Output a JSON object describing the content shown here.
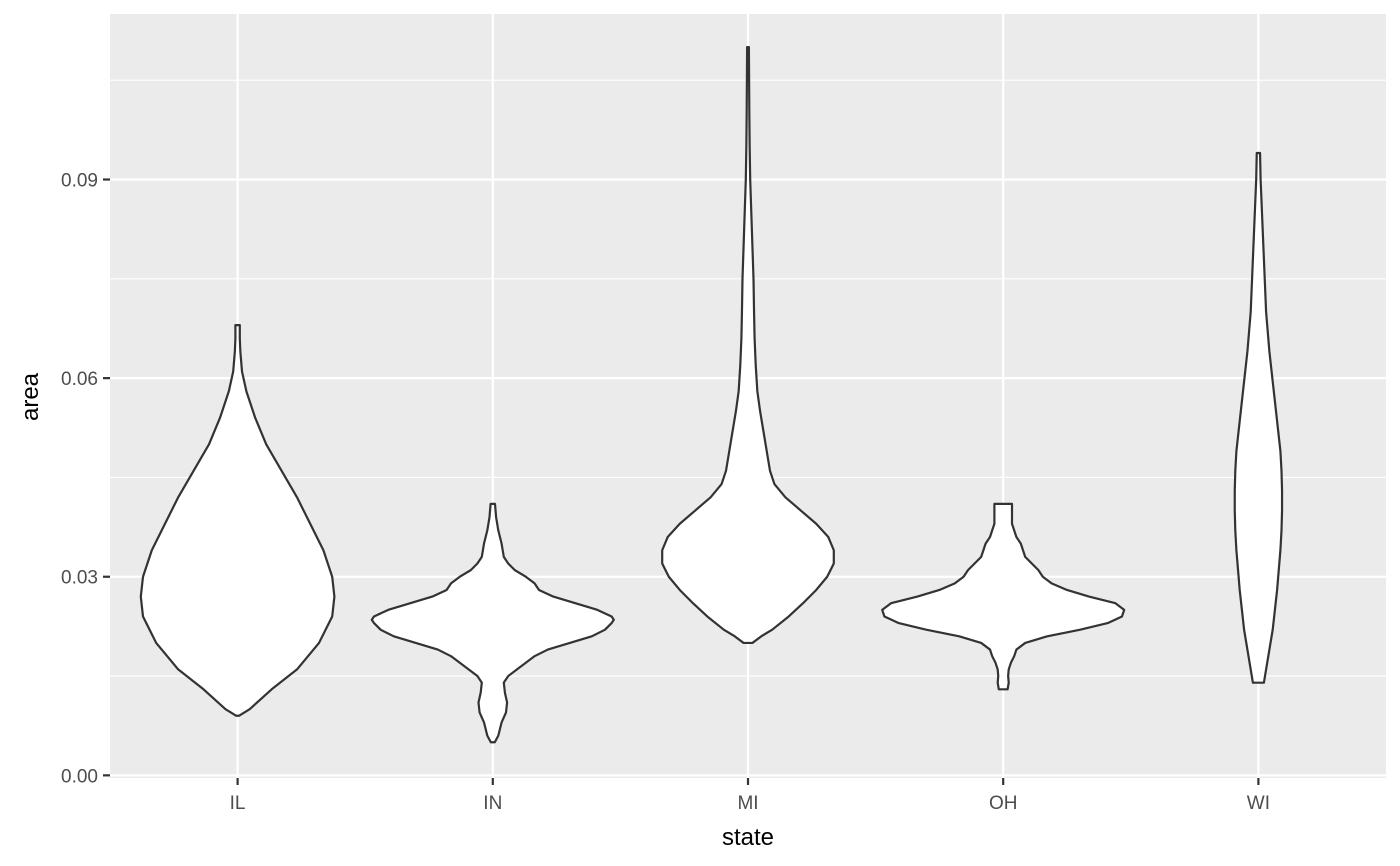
{
  "chart_data": {
    "type": "violin",
    "xlabel": "state",
    "ylabel": "area",
    "categories": [
      "IL",
      "IN",
      "MI",
      "OH",
      "WI"
    ],
    "ylim": [
      -0.0004,
      0.115
    ],
    "yticks": [
      0.0,
      0.03,
      0.06,
      0.09
    ],
    "ytick_labels": [
      "0.00",
      "0.03",
      "0.06",
      "0.09"
    ],
    "minor_yticks": [
      0.015,
      0.045,
      0.075,
      0.105
    ],
    "grid": true,
    "colors": {
      "panel": "#ebebeb",
      "grid": "#ffffff",
      "fill": "#ffffff",
      "outline": "#333333",
      "axis_text": "#4d4d4d"
    },
    "violins": [
      {
        "category": "IL",
        "min": 0.009,
        "max": 0.068,
        "profile": [
          [
            0.009,
            0.012
          ],
          [
            0.01,
            0.11
          ],
          [
            0.013,
            0.31
          ],
          [
            0.016,
            0.54
          ],
          [
            0.02,
            0.74
          ],
          [
            0.024,
            0.86
          ],
          [
            0.027,
            0.88
          ],
          [
            0.03,
            0.86
          ],
          [
            0.034,
            0.78
          ],
          [
            0.038,
            0.66
          ],
          [
            0.042,
            0.54
          ],
          [
            0.046,
            0.4
          ],
          [
            0.05,
            0.26
          ],
          [
            0.054,
            0.16
          ],
          [
            0.058,
            0.08
          ],
          [
            0.061,
            0.04
          ],
          [
            0.064,
            0.025
          ],
          [
            0.066,
            0.02
          ],
          [
            0.068,
            0.02
          ]
        ]
      },
      {
        "category": "IN",
        "min": 0.005,
        "max": 0.041,
        "profile": [
          [
            0.005,
            0.018
          ],
          [
            0.006,
            0.05
          ],
          [
            0.008,
            0.08
          ],
          [
            0.0095,
            0.12
          ],
          [
            0.011,
            0.13
          ],
          [
            0.0125,
            0.11
          ],
          [
            0.014,
            0.1
          ],
          [
            0.015,
            0.14
          ],
          [
            0.016,
            0.22
          ],
          [
            0.017,
            0.3
          ],
          [
            0.018,
            0.38
          ],
          [
            0.019,
            0.5
          ],
          [
            0.02,
            0.7
          ],
          [
            0.021,
            0.9
          ],
          [
            0.022,
            1.02
          ],
          [
            0.023,
            1.08
          ],
          [
            0.0235,
            1.1
          ],
          [
            0.024,
            1.08
          ],
          [
            0.025,
            0.95
          ],
          [
            0.026,
            0.75
          ],
          [
            0.027,
            0.55
          ],
          [
            0.028,
            0.42
          ],
          [
            0.029,
            0.38
          ],
          [
            0.03,
            0.3
          ],
          [
            0.031,
            0.2
          ],
          [
            0.032,
            0.14
          ],
          [
            0.033,
            0.1
          ],
          [
            0.035,
            0.08
          ],
          [
            0.037,
            0.05
          ],
          [
            0.039,
            0.03
          ],
          [
            0.041,
            0.02
          ]
        ]
      },
      {
        "category": "MI",
        "min": 0.02,
        "max": 0.11,
        "profile": [
          [
            0.02,
            0.04
          ],
          [
            0.021,
            0.12
          ],
          [
            0.022,
            0.22
          ],
          [
            0.024,
            0.37
          ],
          [
            0.026,
            0.5
          ],
          [
            0.028,
            0.62
          ],
          [
            0.03,
            0.72
          ],
          [
            0.032,
            0.78
          ],
          [
            0.034,
            0.78
          ],
          [
            0.036,
            0.73
          ],
          [
            0.038,
            0.62
          ],
          [
            0.04,
            0.48
          ],
          [
            0.042,
            0.34
          ],
          [
            0.044,
            0.24
          ],
          [
            0.046,
            0.2
          ],
          [
            0.048,
            0.18
          ],
          [
            0.05,
            0.16
          ],
          [
            0.052,
            0.14
          ],
          [
            0.055,
            0.11
          ],
          [
            0.058,
            0.085
          ],
          [
            0.062,
            0.07
          ],
          [
            0.066,
            0.06
          ],
          [
            0.07,
            0.055
          ],
          [
            0.075,
            0.05
          ],
          [
            0.08,
            0.04
          ],
          [
            0.085,
            0.03
          ],
          [
            0.09,
            0.02
          ],
          [
            0.095,
            0.015
          ],
          [
            0.1,
            0.012
          ],
          [
            0.105,
            0.01
          ],
          [
            0.11,
            0.008
          ]
        ]
      },
      {
        "category": "OH",
        "min": 0.013,
        "max": 0.041,
        "profile": [
          [
            0.013,
            0.04
          ],
          [
            0.014,
            0.05
          ],
          [
            0.015,
            0.045
          ],
          [
            0.016,
            0.05
          ],
          [
            0.017,
            0.07
          ],
          [
            0.018,
            0.1
          ],
          [
            0.019,
            0.12
          ],
          [
            0.02,
            0.2
          ],
          [
            0.021,
            0.4
          ],
          [
            0.022,
            0.7
          ],
          [
            0.023,
            0.95
          ],
          [
            0.024,
            1.08
          ],
          [
            0.025,
            1.1
          ],
          [
            0.026,
            1.02
          ],
          [
            0.027,
            0.78
          ],
          [
            0.028,
            0.58
          ],
          [
            0.029,
            0.44
          ],
          [
            0.03,
            0.36
          ],
          [
            0.031,
            0.32
          ],
          [
            0.032,
            0.26
          ],
          [
            0.033,
            0.2
          ],
          [
            0.034,
            0.18
          ],
          [
            0.035,
            0.16
          ],
          [
            0.036,
            0.12
          ],
          [
            0.037,
            0.1
          ],
          [
            0.038,
            0.08
          ],
          [
            0.039,
            0.08
          ],
          [
            0.04,
            0.08
          ],
          [
            0.041,
            0.08
          ]
        ]
      },
      {
        "category": "WI",
        "min": 0.014,
        "max": 0.094,
        "profile": [
          [
            0.014,
            0.05
          ],
          [
            0.016,
            0.07
          ],
          [
            0.018,
            0.09
          ],
          [
            0.02,
            0.11
          ],
          [
            0.022,
            0.13
          ],
          [
            0.025,
            0.15
          ],
          [
            0.028,
            0.17
          ],
          [
            0.031,
            0.185
          ],
          [
            0.034,
            0.2
          ],
          [
            0.037,
            0.21
          ],
          [
            0.04,
            0.215
          ],
          [
            0.043,
            0.215
          ],
          [
            0.046,
            0.21
          ],
          [
            0.049,
            0.2
          ],
          [
            0.052,
            0.18
          ],
          [
            0.055,
            0.16
          ],
          [
            0.058,
            0.14
          ],
          [
            0.061,
            0.12
          ],
          [
            0.064,
            0.1
          ],
          [
            0.067,
            0.085
          ],
          [
            0.07,
            0.07
          ],
          [
            0.074,
            0.06
          ],
          [
            0.078,
            0.05
          ],
          [
            0.082,
            0.04
          ],
          [
            0.086,
            0.03
          ],
          [
            0.09,
            0.02
          ],
          [
            0.094,
            0.015
          ]
        ]
      }
    ]
  }
}
